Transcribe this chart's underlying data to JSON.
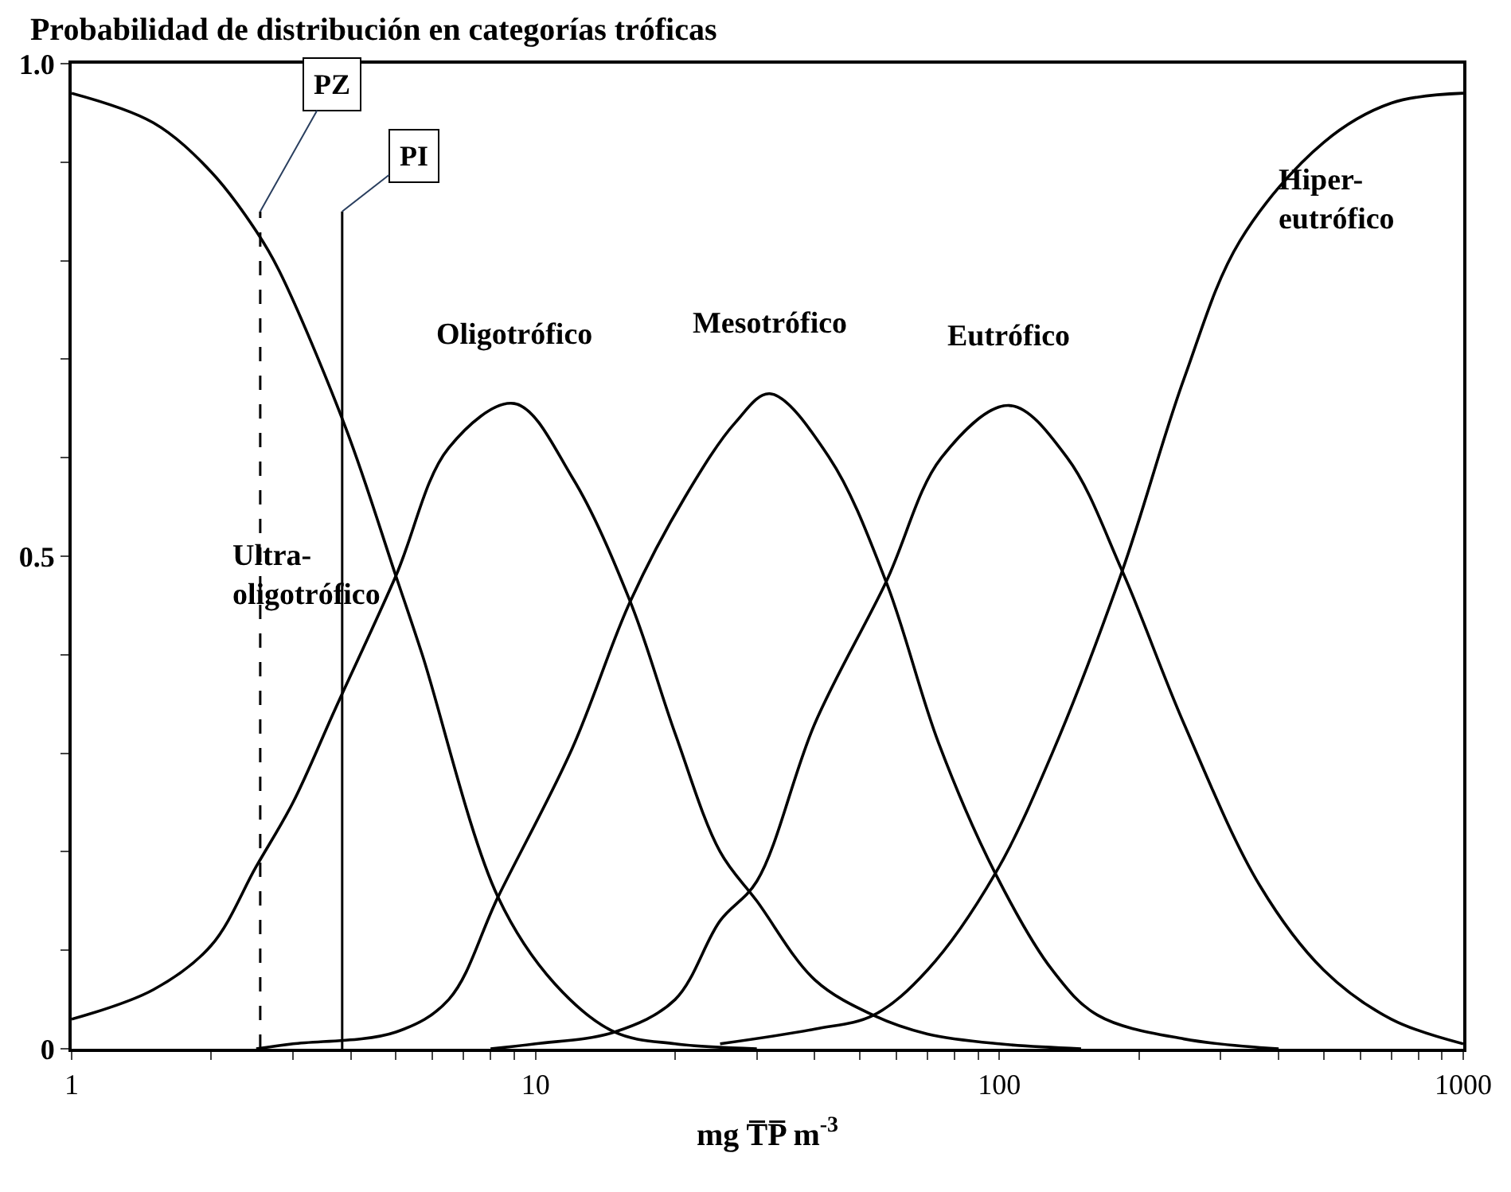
{
  "chart_data": {
    "type": "line",
    "title": "Probabilidad de distribución en categorías tróficas",
    "xlabel": "mg T̅P̅ m$^{-3}$",
    "log": "x",
    "legend": false,
    "marker": "none",
    "line_style": "solid",
    "xlim": [
      1,
      1000
    ],
    "ylim": [
      0,
      1.0
    ],
    "xticks": [
      1,
      {
        "value": 2,
        "label": null
      },
      {
        "value": 3,
        "label": null
      },
      {
        "value": 4,
        "label": null
      },
      {
        "value": 5,
        "label": null
      },
      {
        "value": 6,
        "label": null
      },
      {
        "value": 7,
        "label": null
      },
      {
        "value": 8,
        "label": null
      },
      {
        "value": 9,
        "label": null
      },
      10,
      {
        "value": 20,
        "label": null
      },
      {
        "value": 30,
        "label": null
      },
      {
        "value": 40,
        "label": null
      },
      {
        "value": 50,
        "label": null
      },
      {
        "value": 60,
        "label": null
      },
      {
        "value": 70,
        "label": null
      },
      {
        "value": 80,
        "label": null
      },
      {
        "value": 90,
        "label": null
      },
      100,
      {
        "value": 200,
        "label": null
      },
      {
        "value": 300,
        "label": null
      },
      {
        "value": 400,
        "label": null
      },
      {
        "value": 500,
        "label": null
      },
      {
        "value": 600,
        "label": null
      },
      {
        "value": 700,
        "label": null
      },
      {
        "value": 800,
        "label": null
      },
      {
        "value": 900,
        "label": null
      },
      1000
    ],
    "yticks": [
      0,
      {
        "value": 0.1,
        "label": null
      },
      {
        "value": 0.2,
        "label": null
      },
      {
        "value": 0.3,
        "label": null
      },
      {
        "value": 0.4,
        "label": null
      },
      0.5,
      {
        "value": 0.6,
        "label": null
      },
      {
        "value": 0.7,
        "label": null
      },
      {
        "value": 0.8,
        "label": null
      },
      {
        "value": 0.9,
        "label": null
      },
      {
        "value": 1.0,
        "label": "1.0"
      }
    ],
    "series": [
      {
        "name": "Ultra-\noligotrófico",
        "color": "#000000",
        "x": [
          1,
          1.5,
          2,
          2.5,
          2.8,
          3.9,
          5,
          5.7,
          8.3,
          11,
          14.8,
          20,
          30
        ],
        "values": [
          0.97,
          0.94,
          0.89,
          0.83,
          0.79,
          0.63,
          0.48,
          0.4,
          0.154,
          0.066,
          0.017,
          0.005,
          0
        ]
      },
      {
        "name": "Oligotrófico",
        "color": "#000000",
        "x": [
          1,
          1.5,
          2,
          2.5,
          3,
          3.7,
          5,
          6.5,
          9,
          12,
          16,
          20,
          25,
          30,
          40,
          53.5,
          70,
          100,
          150
        ],
        "values": [
          0.03,
          0.06,
          0.105,
          0.185,
          0.25,
          0.345,
          0.48,
          0.61,
          0.655,
          0.58,
          0.454,
          0.32,
          0.2,
          0.15,
          0.07,
          0.034,
          0.015,
          0.005,
          0
        ]
      },
      {
        "name": "Mesotrófico",
        "color": "#000000",
        "x": [
          2.5,
          3,
          5,
          6.5,
          8.3,
          12,
          16,
          21,
          27,
          32,
          43,
          57,
          74,
          98,
          130,
          163,
          250,
          400
        ],
        "values": [
          0,
          0.005,
          0.017,
          0.05,
          0.154,
          0.305,
          0.454,
          0.56,
          0.636,
          0.665,
          0.6,
          0.474,
          0.31,
          0.178,
          0.08,
          0.034,
          0.01,
          0
        ]
      },
      {
        "name": "Eutrófico",
        "color": "#000000",
        "x": [
          8,
          10,
          14.8,
          20,
          25,
          30,
          40,
          57,
          75,
          105,
          140,
          184,
          250,
          364,
          500,
          700,
          1000
        ],
        "values": [
          0,
          0.005,
          0.017,
          0.05,
          0.13,
          0.17,
          0.33,
          0.474,
          0.6,
          0.653,
          0.6,
          0.485,
          0.33,
          0.166,
          0.08,
          0.03,
          0.005
        ]
      },
      {
        "name": "Hiper-\neutrófico",
        "color": "#000000",
        "x": [
          25,
          40,
          53.5,
          70,
          98,
          130,
          184,
          250,
          330,
          500,
          700,
          1000
        ],
        "values": [
          0.005,
          0.02,
          0.034,
          0.08,
          0.178,
          0.3,
          0.485,
          0.68,
          0.82,
          0.92,
          0.96,
          0.97
        ]
      }
    ],
    "ref_lines": [
      {
        "axis": "x",
        "value": 2.55,
        "label": "PZ",
        "line_style": "dashed",
        "color": "#000000"
      },
      {
        "axis": "x",
        "value": 3.83,
        "label": "PI",
        "line_style": "solid",
        "color": "#000000"
      }
    ]
  }
}
